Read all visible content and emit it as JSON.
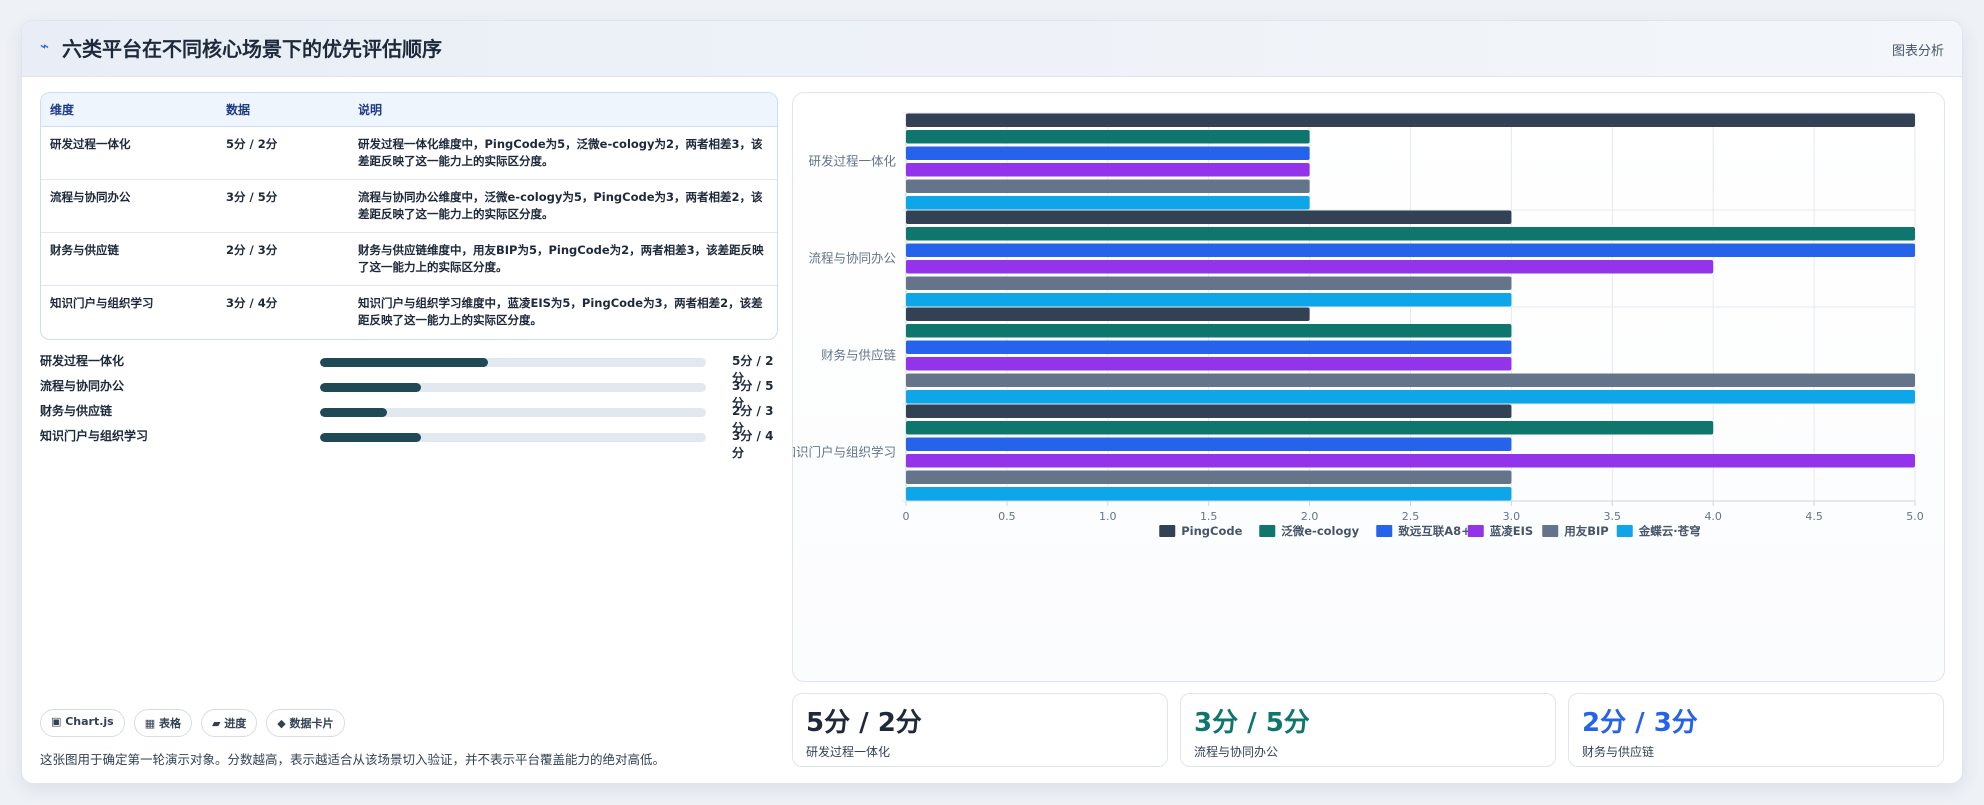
{
  "header": {
    "logo_icon": "trend-icon",
    "title": "六类平台在不同核心场景下的优先评估顺序",
    "analysis_label": "图表分析"
  },
  "table": {
    "headers": [
      "维度",
      "数据",
      "说明"
    ],
    "rows": [
      {
        "dim": "研发过程一体化",
        "data": "5分 / 2分",
        "desc": "研发过程一体化维度中，PingCode为5，泛微e-cology为2，两者相差3，该差距反映了这一能力上的实际区分度。"
      },
      {
        "dim": "流程与协同办公",
        "data": "3分 / 5分",
        "desc": "流程与协同办公维度中，泛微e-cology为5，PingCode为3，两者相差2，该差距反映了这一能力上的实际区分度。"
      },
      {
        "dim": "财务与供应链",
        "data": "2分 / 3分",
        "desc": "财务与供应链维度中，用友BIP为5，PingCode为2，两者相差3，该差距反映了这一能力上的实际区分度。"
      },
      {
        "dim": "知识门户与组织学习",
        "data": "3分 / 4分",
        "desc": "知识门户与组织学习维度中，蓝凌EIS为5，PingCode为3，两者相差2，该差距反映了这一能力上的实际区分度。"
      }
    ]
  },
  "progress": [
    {
      "label": "研发过程一体化",
      "value": "5分 / 2分",
      "fraction": 0.435
    },
    {
      "label": "流程与协同办公",
      "value": "3分 / 5分",
      "fraction": 0.261
    },
    {
      "label": "财务与供应链",
      "value": "2分 / 3分",
      "fraction": 0.174
    },
    {
      "label": "知识门户与组织学习",
      "value": "3分 / 4分",
      "fraction": 0.261
    }
  ],
  "chips": [
    "▣ Chart.js",
    "▦ 表格",
    "▰ 进度",
    "◆ 数据卡片"
  ],
  "note": "这张图用于确定第一轮演示对象。分数越高，表示越适合从该场景切入验证，并不表示平台覆盖能力的绝对高低。",
  "stats": [
    {
      "value": "5分 / 2分",
      "label": "研发过程一体化",
      "color": "#1e293b"
    },
    {
      "value": "3分 / 5分",
      "label": "流程与协同办公",
      "color": "#0f766e"
    },
    {
      "value": "2分 / 3分",
      "label": "财务与供应链",
      "color": "#2563eb"
    }
  ],
  "chart_data": {
    "type": "bar",
    "orientation": "horizontal",
    "categories": [
      "研发过程一体化",
      "流程与协同办公",
      "财务与供应链",
      "知识门户与组织学习"
    ],
    "series": [
      {
        "name": "PingCode",
        "color": "#334155",
        "values": [
          5,
          3,
          2,
          3
        ]
      },
      {
        "name": "泛微e-cology",
        "color": "#0f766e",
        "values": [
          2,
          5,
          3,
          4
        ]
      },
      {
        "name": "致远互联A8+",
        "color": "#2563eb",
        "values": [
          2,
          5,
          3,
          3
        ]
      },
      {
        "name": "蓝凌EIS",
        "color": "#9333ea",
        "values": [
          2,
          4,
          3,
          5
        ]
      },
      {
        "name": "用友BIP",
        "color": "#64748b",
        "values": [
          2,
          3,
          5,
          3
        ]
      },
      {
        "name": "金蝶云·苍穹",
        "color": "#0ea5e9",
        "values": [
          2,
          3,
          5,
          3
        ]
      }
    ],
    "xlim": [
      0,
      5
    ],
    "xticks": [
      "0",
      "0.5",
      "1.0",
      "1.5",
      "2.0",
      "2.5",
      "3.0",
      "3.5",
      "4.0",
      "4.5",
      "5.0"
    ],
    "grid": true,
    "legend_position": "bottom"
  }
}
